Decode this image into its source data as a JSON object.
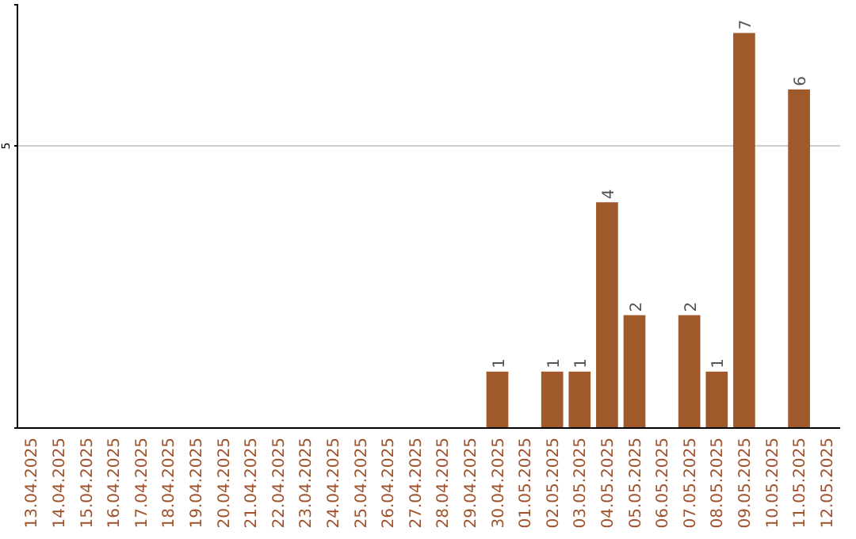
{
  "chart_data": {
    "type": "bar",
    "categories": [
      "13.04.2025",
      "14.04.2025",
      "15.04.2025",
      "16.04.2025",
      "17.04.2025",
      "18.04.2025",
      "19.04.2025",
      "20.04.2025",
      "21.04.2025",
      "22.04.2025",
      "23.04.2025",
      "24.04.2025",
      "25.04.2025",
      "26.04.2025",
      "27.04.2025",
      "28.04.2025",
      "29.04.2025",
      "30.04.2025",
      "01.05.2025",
      "02.05.2025",
      "03.05.2025",
      "04.05.2025",
      "05.05.2025",
      "06.05.2025",
      "07.05.2025",
      "08.05.2025",
      "09.05.2025",
      "10.05.2025",
      "11.05.2025",
      "12.05.2025"
    ],
    "values": [
      null,
      null,
      null,
      null,
      null,
      null,
      null,
      null,
      null,
      null,
      null,
      null,
      null,
      null,
      null,
      null,
      null,
      1,
      null,
      1,
      1,
      4,
      2,
      null,
      2,
      1,
      7,
      null,
      6,
      null
    ],
    "data_labels": true,
    "color": "#a0592b",
    "ylim": [
      0,
      7.5
    ],
    "yticks": [
      5
    ],
    "grid": "y"
  }
}
